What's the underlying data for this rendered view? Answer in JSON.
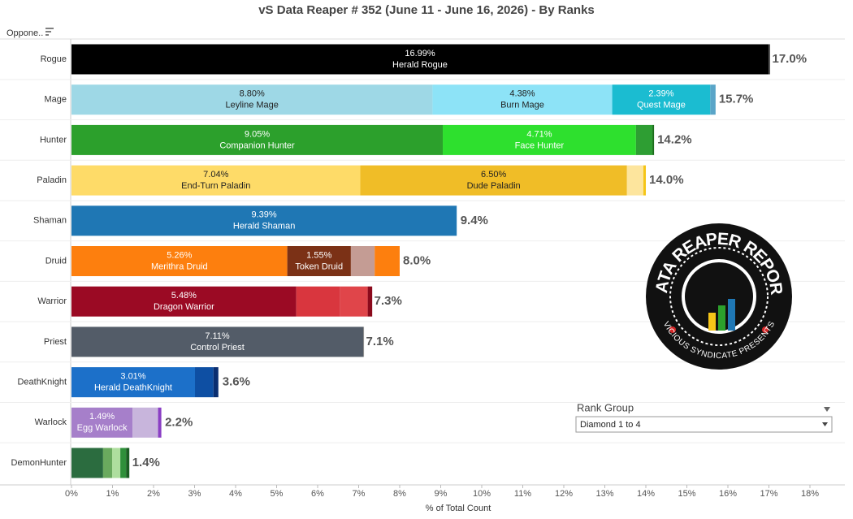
{
  "chart_data": {
    "type": "stacked-bar-horizontal",
    "title": "vS Data Reaper # 352 (June 11 - June 16, 2026) - By Ranks",
    "row_header": "Oppone..",
    "x_label": "% of Total Count",
    "xlim": [
      0,
      18
    ],
    "xticks": [
      {
        "value": 0,
        "label": "0%"
      },
      {
        "value": 1,
        "label": "1%"
      },
      {
        "value": 2,
        "label": "2%"
      },
      {
        "value": 3,
        "label": "3%"
      },
      {
        "value": 4,
        "label": "4%"
      },
      {
        "value": 5,
        "label": "5%"
      },
      {
        "value": 6,
        "label": "6%"
      },
      {
        "value": 7,
        "label": "7%"
      },
      {
        "value": 8,
        "label": "8%"
      },
      {
        "value": 9,
        "label": "9%"
      },
      {
        "value": 10,
        "label": "10%"
      },
      {
        "value": 11,
        "label": "11%"
      },
      {
        "value": 12,
        "label": "12%"
      },
      {
        "value": 13,
        "label": "13%"
      },
      {
        "value": 14,
        "label": "14%"
      },
      {
        "value": 15,
        "label": "15%"
      },
      {
        "value": 16,
        "label": "16%"
      },
      {
        "value": 17,
        "label": "17%"
      },
      {
        "value": 18,
        "label": "18%"
      }
    ],
    "rows": [
      {
        "category": "Rogue",
        "values": [
          16.99,
          0.04
        ],
        "value_labels": [
          "16.99%",
          null
        ],
        "names": [
          "Herald Rogue",
          null
        ],
        "colors": [
          "#000000",
          "#555555"
        ],
        "total": 17.0,
        "total_label": "17.0%"
      },
      {
        "category": "Mage",
        "values": [
          8.8,
          4.38,
          2.39,
          0.13
        ],
        "value_labels": [
          "8.80%",
          "4.38%",
          "2.39%",
          null
        ],
        "names": [
          "Leyline Mage",
          "Burn Mage",
          "Quest Mage",
          null
        ],
        "colors": [
          "#9ed8e6",
          "#8de3f7",
          "#1bbcd1",
          "#5aa5c8"
        ],
        "total": 15.7,
        "total_label": "15.7%"
      },
      {
        "category": "Hunter",
        "values": [
          9.05,
          4.71,
          0.4,
          0.04
        ],
        "value_labels": [
          "9.05%",
          "4.71%",
          null,
          null
        ],
        "names": [
          "Companion Hunter",
          "Face Hunter",
          null,
          null
        ],
        "colors": [
          "#2ca02c",
          "#2ee02e",
          "#2e9e33",
          "#1a6e1a"
        ],
        "total": 14.2,
        "total_label": "14.2%"
      },
      {
        "category": "Paladin",
        "values": [
          7.04,
          6.5,
          0.4,
          0.06
        ],
        "value_labels": [
          "7.04%",
          "6.50%",
          null,
          null
        ],
        "names": [
          "End-Turn Paladin",
          "Dude Paladin",
          null,
          null
        ],
        "colors": [
          "#fedb68",
          "#f0bd27",
          "#fde59d",
          "#f5c518"
        ],
        "total": 14.0,
        "total_label": "14.0%"
      },
      {
        "category": "Shaman",
        "values": [
          9.39
        ],
        "value_labels": [
          "9.39%"
        ],
        "names": [
          "Herald Shaman"
        ],
        "colors": [
          "#1f77b4"
        ],
        "total": 9.4,
        "total_label": "9.4%"
      },
      {
        "category": "Druid",
        "values": [
          5.26,
          1.55,
          0.58,
          0.61
        ],
        "value_labels": [
          "5.26%",
          "1.55%",
          null,
          null
        ],
        "names": [
          "Merithra Druid",
          "Token Druid",
          null,
          null
        ],
        "colors": [
          "#fd7f0e",
          "#7b3116",
          "#c49c94",
          "#fd7f0e"
        ],
        "total": 8.0,
        "total_label": "8.0%"
      },
      {
        "category": "Warrior",
        "values": [
          5.48,
          1.07,
          0.67,
          0.11
        ],
        "value_labels": [
          "5.48%",
          null,
          null,
          null
        ],
        "names": [
          "Dragon Warrior",
          null,
          null,
          null
        ],
        "colors": [
          "#9b0a24",
          "#d9363e",
          "#e0454a",
          "#8b0a1c"
        ],
        "total": 7.3,
        "total_label": "7.3%"
      },
      {
        "category": "Priest",
        "values": [
          7.11,
          0.02
        ],
        "value_labels": [
          "7.11%",
          null
        ],
        "names": [
          "Control Priest",
          null
        ],
        "colors": [
          "#535c68",
          "#888888"
        ],
        "total": 7.1,
        "total_label": "7.1%"
      },
      {
        "category": "DeathKnight",
        "values": [
          3.01,
          0.45,
          0.12
        ],
        "value_labels": [
          "3.01%",
          null,
          null
        ],
        "names": [
          "Herald DeathKnight",
          null,
          null
        ],
        "colors": [
          "#1c70c9",
          "#0e4fa3",
          "#0a2e70"
        ],
        "total": 3.6,
        "total_label": "3.6%"
      },
      {
        "category": "Warlock",
        "values": [
          1.49,
          0.62,
          0.08
        ],
        "value_labels": [
          "1.49%",
          null,
          null
        ],
        "names": [
          "Egg Warlock",
          null,
          null
        ],
        "colors": [
          "#a67fca",
          "#c8b5dc",
          "#8a3fc4"
        ],
        "total": 2.2,
        "total_label": "2.2%"
      },
      {
        "category": "DemonHunter",
        "values": [
          0.77,
          0.22,
          0.2,
          0.14,
          0.08
        ],
        "value_labels": [
          null,
          null,
          null,
          null,
          null
        ],
        "names": [
          null,
          null,
          null,
          null,
          null
        ],
        "colors": [
          "#2b6c3f",
          "#6aaa5e",
          "#aede9e",
          "#2f8f3a",
          "#1a5e22"
        ],
        "total": 1.4,
        "total_label": "1.4%"
      }
    ]
  },
  "filter": {
    "label": "Rank Group",
    "selected": "Diamond 1 to 4"
  },
  "logo": {
    "top_text": "DATA REAPER REPORT",
    "bottom_text": "VICIOUS SYNDICATE PRESENTS"
  }
}
